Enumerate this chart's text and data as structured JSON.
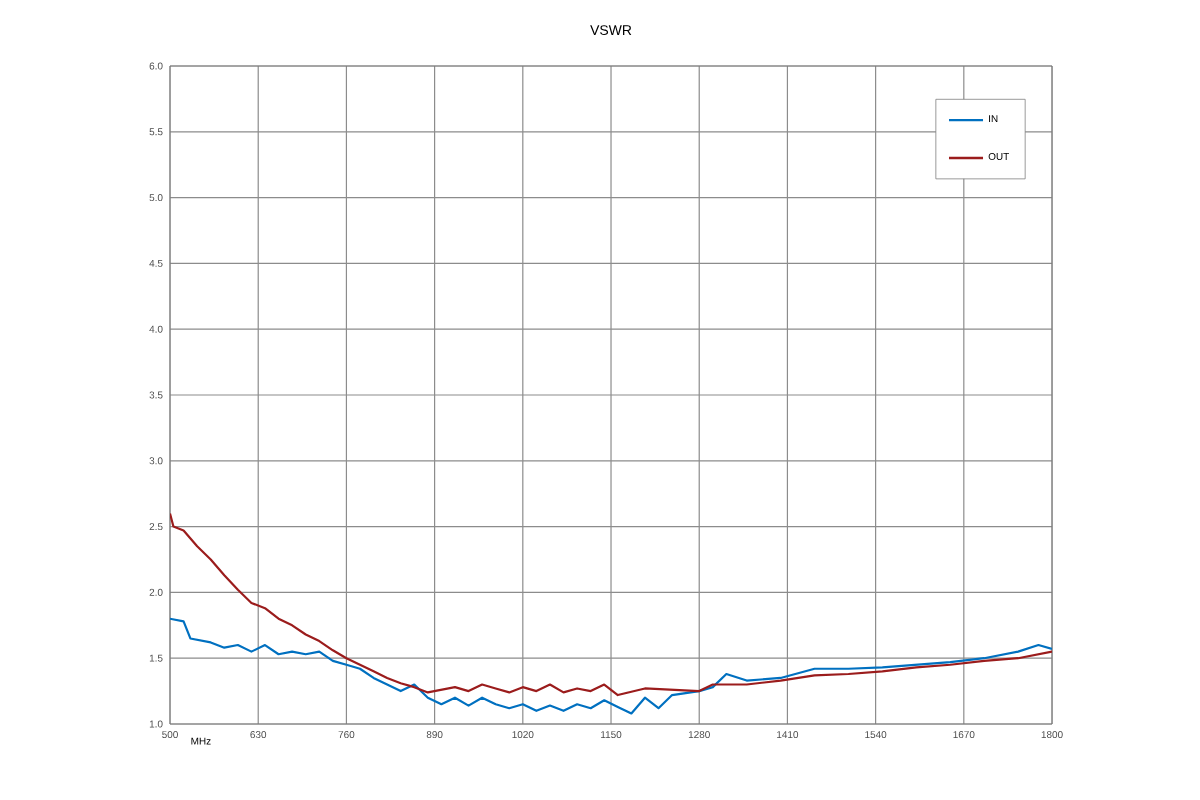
{
  "chart_data": {
    "type": "line",
    "title": "VSWR",
    "xlabel": "MHz",
    "xlim": [
      500,
      1800
    ],
    "xticks": [
      500,
      630,
      760,
      890,
      1020,
      1150,
      1280,
      1410,
      1540,
      1670,
      1800
    ],
    "ylim": [
      1.0,
      6.0
    ],
    "yticks": [
      {
        "value": 1.0,
        "label": "1.0"
      },
      {
        "value": 1.5,
        "label": "1.5"
      },
      {
        "value": 2.0,
        "label": "2.0"
      },
      {
        "value": 2.5,
        "label": "2.5"
      },
      {
        "value": 3.0,
        "label": "3.0"
      },
      {
        "value": 3.5,
        "label": "3.5"
      },
      {
        "value": 4.0,
        "label": "4.0"
      },
      {
        "value": 4.5,
        "label": "4.5"
      },
      {
        "value": 5.0,
        "label": "5.0"
      },
      {
        "value": 5.5,
        "label": "5.5"
      },
      {
        "value": 6.0,
        "label": "6.0"
      }
    ],
    "grid": true,
    "legend": "top right",
    "marker": "none",
    "line_style": "solid",
    "series": [
      {
        "name": "IN",
        "color": "#0070c0",
        "x": [
          500,
          520,
          530,
          560,
          580,
          600,
          620,
          640,
          660,
          680,
          700,
          720,
          740,
          760,
          780,
          800,
          820,
          840,
          860,
          880,
          900,
          920,
          940,
          960,
          980,
          1000,
          1020,
          1040,
          1060,
          1080,
          1100,
          1120,
          1140,
          1160,
          1180,
          1200,
          1220,
          1240,
          1280,
          1300,
          1320,
          1350,
          1400,
          1450,
          1500,
          1550,
          1600,
          1650,
          1700,
          1750,
          1780,
          1800
        ],
        "values": [
          1.8,
          1.78,
          1.65,
          1.62,
          1.58,
          1.6,
          1.55,
          1.6,
          1.53,
          1.55,
          1.53,
          1.55,
          1.48,
          1.45,
          1.42,
          1.35,
          1.3,
          1.25,
          1.3,
          1.2,
          1.15,
          1.2,
          1.14,
          1.2,
          1.15,
          1.12,
          1.15,
          1.1,
          1.14,
          1.1,
          1.15,
          1.12,
          1.18,
          1.13,
          1.08,
          1.2,
          1.12,
          1.22,
          1.25,
          1.28,
          1.38,
          1.33,
          1.35,
          1.42,
          1.42,
          1.43,
          1.45,
          1.47,
          1.5,
          1.55,
          1.6,
          1.57
        ]
      },
      {
        "name": "OUT",
        "color": "#9b1c1c",
        "x": [
          500,
          505,
          520,
          540,
          560,
          580,
          600,
          620,
          640,
          660,
          680,
          700,
          720,
          740,
          760,
          780,
          800,
          820,
          840,
          860,
          880,
          900,
          920,
          940,
          960,
          980,
          1000,
          1020,
          1040,
          1060,
          1080,
          1100,
          1120,
          1140,
          1160,
          1200,
          1280,
          1300,
          1350,
          1400,
          1450,
          1500,
          1550,
          1600,
          1650,
          1700,
          1750,
          1800
        ],
        "values": [
          2.6,
          2.5,
          2.47,
          2.35,
          2.25,
          2.13,
          2.02,
          1.92,
          1.88,
          1.8,
          1.75,
          1.68,
          1.63,
          1.56,
          1.5,
          1.45,
          1.4,
          1.35,
          1.31,
          1.28,
          1.24,
          1.26,
          1.28,
          1.25,
          1.3,
          1.27,
          1.24,
          1.28,
          1.25,
          1.3,
          1.24,
          1.27,
          1.25,
          1.3,
          1.22,
          1.27,
          1.25,
          1.3,
          1.3,
          1.33,
          1.37,
          1.38,
          1.4,
          1.43,
          1.45,
          1.48,
          1.5,
          1.55
        ]
      }
    ]
  }
}
